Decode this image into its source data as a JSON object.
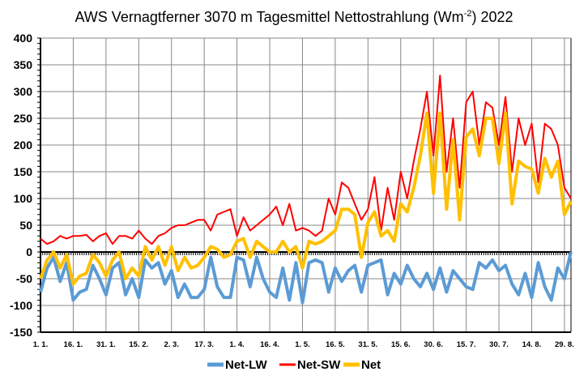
{
  "chart_data": {
    "type": "line",
    "title": "AWS Vernagtferner 3070 m Tagesmittel Nettostrahlung (Wm-2) 2022",
    "title_parts": {
      "main": "AWS Vernagtferner 3070 m Tagesmittel Nettostrahlung (Wm",
      "sup": "-2",
      "end": ") 2022"
    },
    "xlabel": "",
    "ylabel": "",
    "ylim": [
      -150,
      400
    ],
    "yticks": [
      -150,
      -100,
      -50,
      0,
      50,
      100,
      150,
      200,
      250,
      300,
      350,
      400
    ],
    "xticks": [
      "1. 1.",
      "16. 1.",
      "31. 1.",
      "15. 2.",
      "2. 3.",
      "17. 3.",
      "1. 4.",
      "16. 4.",
      "1. 5.",
      "16. 5.",
      "31. 5.",
      "15. 6.",
      "30. 6.",
      "15. 7.",
      "30. 7.",
      "14. 8.",
      "29. 8."
    ],
    "xlim": [
      "1. 1.",
      "1. 9."
    ],
    "grid": true,
    "legend_position": "bottom",
    "x": [
      "1.1.",
      "4.1.",
      "7.1.",
      "10.1.",
      "13.1.",
      "16.1.",
      "19.1.",
      "22.1.",
      "25.1.",
      "28.1.",
      "31.1.",
      "3.2.",
      "6.2.",
      "9.2.",
      "12.2.",
      "15.2.",
      "18.2.",
      "21.2.",
      "24.2.",
      "27.2.",
      "2.3.",
      "5.3.",
      "8.3.",
      "11.3.",
      "14.3.",
      "17.3.",
      "20.3.",
      "23.3.",
      "26.3.",
      "29.3.",
      "1.4.",
      "4.4.",
      "7.4.",
      "10.4.",
      "13.4.",
      "16.4.",
      "19.4.",
      "22.4.",
      "25.4.",
      "28.4.",
      "1.5.",
      "4.5.",
      "7.5.",
      "10.5.",
      "13.5.",
      "16.5.",
      "19.5.",
      "22.5.",
      "25.5.",
      "28.5.",
      "31.5.",
      "3.6.",
      "6.6.",
      "9.6.",
      "12.6.",
      "15.6.",
      "18.6.",
      "21.6.",
      "24.6.",
      "27.6.",
      "30.6.",
      "3.7.",
      "6.7.",
      "9.7.",
      "12.7.",
      "15.7.",
      "18.7.",
      "21.7.",
      "24.7.",
      "27.7.",
      "30.7.",
      "2.8.",
      "5.8.",
      "8.8.",
      "11.8.",
      "14.8.",
      "17.8.",
      "20.8.",
      "23.8.",
      "26.8.",
      "29.8.",
      "1.9."
    ],
    "series": [
      {
        "name": "Net-LW",
        "color": "#5B9BD5",
        "values": [
          -75,
          -30,
          -10,
          -55,
          -20,
          -90,
          -75,
          -70,
          -25,
          -50,
          -80,
          -30,
          -20,
          -80,
          -50,
          -85,
          -15,
          -30,
          -20,
          -60,
          -35,
          -85,
          -60,
          -85,
          -85,
          -70,
          -10,
          -65,
          -85,
          -85,
          -10,
          -15,
          -65,
          -10,
          -50,
          -75,
          -85,
          -30,
          -90,
          -20,
          -95,
          -20,
          -15,
          -20,
          -75,
          -30,
          -55,
          -35,
          -25,
          -75,
          -25,
          -20,
          -15,
          -80,
          -40,
          -60,
          -25,
          -50,
          -65,
          -40,
          -70,
          -30,
          -75,
          -35,
          -50,
          -65,
          -70,
          -20,
          -30,
          -15,
          -35,
          -25,
          -60,
          -80,
          -40,
          -85,
          -20,
          -65,
          -90,
          -30,
          -50,
          0
        ]
      },
      {
        "name": "Net-SW",
        "color": "#FF0000",
        "values": [
          25,
          15,
          20,
          30,
          25,
          30,
          30,
          32,
          20,
          30,
          35,
          15,
          30,
          30,
          25,
          40,
          25,
          15,
          30,
          35,
          45,
          50,
          50,
          55,
          60,
          60,
          40,
          70,
          75,
          80,
          30,
          65,
          40,
          50,
          60,
          70,
          85,
          50,
          90,
          40,
          45,
          40,
          30,
          40,
          100,
          70,
          130,
          120,
          90,
          60,
          80,
          140,
          40,
          120,
          60,
          150,
          100,
          170,
          230,
          300,
          180,
          330,
          150,
          250,
          120,
          280,
          300,
          200,
          280,
          270,
          200,
          290,
          150,
          250,
          200,
          240,
          130,
          240,
          230,
          200,
          120,
          100
        ]
      },
      {
        "name": "Net",
        "color": "#FFC000",
        "values": [
          -50,
          -15,
          0,
          -30,
          -5,
          -60,
          -45,
          -40,
          -5,
          -20,
          -45,
          -15,
          0,
          -50,
          -30,
          -45,
          10,
          -15,
          10,
          -25,
          10,
          -35,
          -10,
          -30,
          -25,
          -10,
          10,
          5,
          -10,
          -5,
          20,
          25,
          -10,
          20,
          10,
          0,
          0,
          20,
          0,
          10,
          -30,
          20,
          15,
          20,
          30,
          40,
          80,
          80,
          70,
          -10,
          55,
          75,
          30,
          40,
          20,
          90,
          75,
          120,
          180,
          260,
          110,
          260,
          80,
          210,
          60,
          215,
          230,
          180,
          250,
          250,
          165,
          260,
          90,
          170,
          160,
          155,
          110,
          175,
          140,
          170,
          70,
          95
        ]
      }
    ]
  }
}
